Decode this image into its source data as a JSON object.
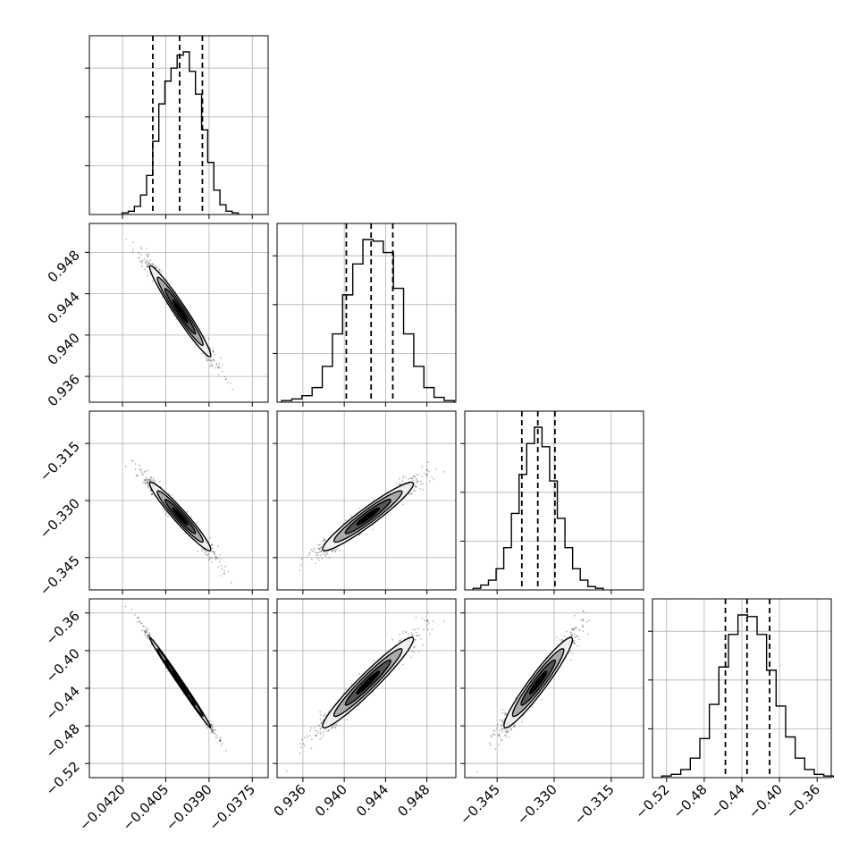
{
  "chart_data": {
    "type": "corner",
    "title": "",
    "parameters": [
      {
        "index": 0,
        "range": [
          -0.04315,
          -0.03695
        ],
        "ticks": [
          "−0.0420",
          "−0.0405",
          "−0.0390",
          "−0.0375"
        ],
        "tick_values": [
          -0.042,
          -0.0405,
          -0.039,
          -0.0375
        ],
        "mean": -0.04,
        "std": 0.00053,
        "quantiles": [
          -0.04095,
          -0.04002,
          -0.03923
        ],
        "hist_bins": [
          1,
          2,
          5,
          12,
          24,
          45,
          68,
          82,
          90,
          98,
          100,
          88,
          74,
          52,
          32,
          15,
          6,
          2,
          1
        ]
      },
      {
        "index": 1,
        "range": [
          0.9335,
          0.9508
        ],
        "ticks": [
          "0.936",
          "0.940",
          "0.944",
          "0.948"
        ],
        "tick_values": [
          0.936,
          0.94,
          0.944,
          0.948
        ],
        "mean": 0.9423,
        "std": 0.0022,
        "quantiles": [
          0.9402,
          0.9426,
          0.9447
        ],
        "hist_bins": [
          1,
          2,
          4,
          9,
          22,
          42,
          66,
          85,
          100,
          99,
          92,
          70,
          42,
          22,
          9,
          3,
          1
        ]
      },
      {
        "index": 2,
        "range": [
          -0.3535,
          -0.3065
        ],
        "ticks": [
          "−0.345",
          "−0.330",
          "−0.315"
        ],
        "tick_values": [
          -0.345,
          -0.33,
          -0.315
        ],
        "mean": -0.3342,
        "std": 0.0045,
        "quantiles": [
          -0.3385,
          -0.3343,
          -0.3298
        ],
        "hist_bins": [
          1,
          3,
          6,
          13,
          26,
          47,
          71,
          90,
          100,
          88,
          67,
          44,
          26,
          13,
          6,
          2,
          1
        ]
      },
      {
        "index": 3,
        "range": [
          -0.535,
          -0.345
        ],
        "ticks": [
          "−0.52",
          "−0.48",
          "−0.44",
          "−0.40",
          "−0.36"
        ],
        "tick_values": [
          -0.52,
          -0.48,
          -0.44,
          -0.4,
          -0.36
        ],
        "mean": -0.434,
        "std": 0.024,
        "quantiles": [
          -0.4575,
          -0.4345,
          -0.4105
        ],
        "hist_bins": [
          1,
          2,
          5,
          12,
          24,
          45,
          68,
          88,
          100,
          99,
          88,
          66,
          44,
          25,
          12,
          5,
          2,
          1
        ]
      }
    ],
    "correlations": [
      {
        "x": 0,
        "y": 1,
        "rho": -0.97
      },
      {
        "x": 0,
        "y": 2,
        "rho": -0.96
      },
      {
        "x": 0,
        "y": 3,
        "rho": -0.995
      },
      {
        "x": 1,
        "y": 2,
        "rho": 0.95
      },
      {
        "x": 1,
        "y": 3,
        "rho": 0.96
      },
      {
        "x": 2,
        "y": 3,
        "rho": 0.95
      }
    ],
    "contour_levels_sigma": [
      0.5,
      1.0,
      1.5,
      2.0
    ],
    "contour_fills": [
      "#000000",
      "#555555",
      "#aaaaaa",
      "#eeeeee"
    ],
    "scatter_color": "#000000",
    "grid": true,
    "legend": "none"
  }
}
